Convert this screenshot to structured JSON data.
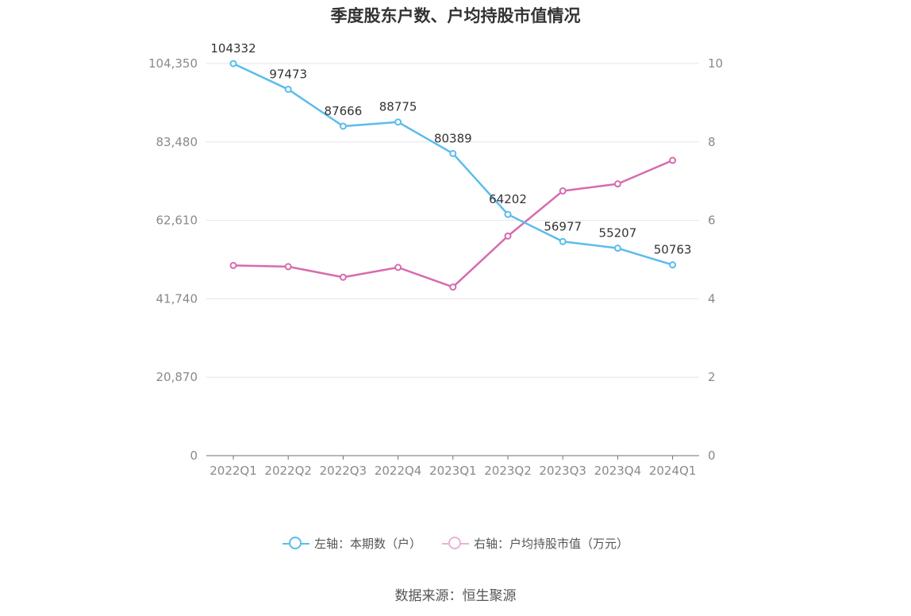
{
  "chart_data": {
    "type": "line",
    "title": "季度股东户数、户均持股市值情况",
    "categories": [
      "2022Q1",
      "2022Q2",
      "2022Q3",
      "2022Q4",
      "2023Q1",
      "2023Q2",
      "2023Q3",
      "2023Q4",
      "2024Q1"
    ],
    "left_axis": {
      "ylim": [
        0,
        104350
      ],
      "ticks": [
        0,
        20870,
        41740,
        62610,
        83480,
        104350
      ],
      "tick_labels": [
        "0",
        "20,870",
        "41,740",
        "62,610",
        "83,480",
        "104,350"
      ]
    },
    "right_axis": {
      "ylim": [
        0,
        10
      ],
      "ticks": [
        0,
        2,
        4,
        6,
        8,
        10
      ],
      "tick_labels": [
        "0",
        "2",
        "4",
        "6",
        "8",
        "10"
      ]
    },
    "series": [
      {
        "name": "左轴：本期数（户）",
        "axis": "left",
        "color": "#5bbcec",
        "values": [
          104332,
          97473,
          87666,
          88775,
          80389,
          64202,
          56977,
          55207,
          50763
        ],
        "labels": [
          "104332",
          "97473",
          "87666",
          "88775",
          "80389",
          "64202",
          "56977",
          "55207",
          "50763"
        ]
      },
      {
        "name": "右轴：户均持股市值（万元）",
        "axis": "right",
        "color": "#d76bae",
        "values": [
          4.85,
          4.82,
          4.55,
          4.8,
          4.3,
          5.6,
          6.75,
          6.93,
          7.53
        ]
      }
    ],
    "grid": true,
    "legend_position": "bottom"
  },
  "source": "数据来源：恒生聚源"
}
